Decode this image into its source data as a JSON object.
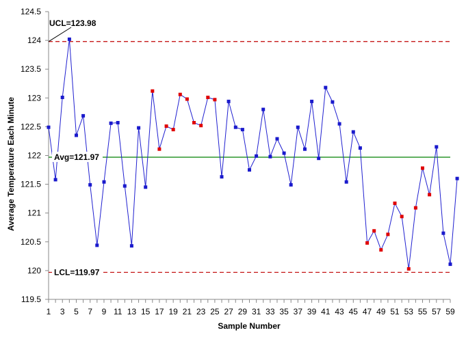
{
  "chart_data": {
    "type": "line",
    "title": "",
    "xlabel": "Sample Number",
    "ylabel": "Average Temperature Each Minute",
    "xlim": [
      1,
      59
    ],
    "ylim": [
      119.5,
      124.5
    ],
    "x_ticks": [
      "1",
      "3",
      "5",
      "7",
      "9",
      "11",
      "13",
      "15",
      "17",
      "19",
      "21",
      "23",
      "25",
      "27",
      "29",
      "31",
      "33",
      "35",
      "37",
      "39",
      "41",
      "43",
      "45",
      "47",
      "49",
      "51",
      "53",
      "55",
      "57",
      "59"
    ],
    "y_ticks": [
      "119.5",
      "120",
      "120.5",
      "121",
      "121.5",
      "122",
      "122.5",
      "123",
      "123.5",
      "124",
      "124.5"
    ],
    "grid": false,
    "legend": "none",
    "reference_lines": [
      {
        "name": "UCL",
        "label": "UCL=123.98",
        "value": 123.98,
        "style": "dashed",
        "color": "#c00000"
      },
      {
        "name": "Avg",
        "label": "Avg=121.97",
        "value": 121.97,
        "style": "solid",
        "color": "#008000"
      },
      {
        "name": "LCL",
        "label": "LCL=119.97",
        "value": 119.97,
        "style": "dashed",
        "color": "#c00000"
      }
    ],
    "series": [
      {
        "color": "#1f1fd0",
        "x": [
          1,
          2,
          3,
          4,
          5,
          6,
          7,
          8,
          9,
          10,
          11,
          12,
          13,
          14,
          15,
          16,
          17,
          18,
          19,
          20,
          21,
          22,
          23,
          24,
          25,
          26,
          27,
          28,
          29,
          30,
          31,
          32,
          33,
          34,
          35,
          36,
          37,
          38,
          39,
          40,
          41,
          42,
          43,
          44,
          45,
          46,
          47,
          48,
          49,
          50,
          51,
          52,
          53,
          54,
          55,
          56,
          57,
          58,
          59,
          60
        ],
        "values": [
          122.49,
          121.58,
          123.01,
          124.02,
          122.35,
          122.69,
          121.49,
          120.44,
          121.54,
          122.56,
          122.57,
          121.47,
          120.43,
          122.48,
          121.45,
          123.12,
          122.11,
          122.51,
          122.45,
          123.06,
          122.98,
          122.57,
          122.52,
          123.01,
          122.97,
          121.63,
          122.94,
          122.49,
          122.45,
          121.75,
          121.99,
          122.8,
          121.98,
          122.29,
          122.04,
          121.49,
          122.49,
          122.11,
          122.94,
          121.95,
          123.18,
          122.93,
          122.55,
          121.54,
          122.41,
          122.13,
          120.48,
          120.69,
          120.36,
          120.63,
          121.17,
          120.94,
          120.03,
          121.09,
          121.78,
          121.32,
          122.15,
          120.65,
          120.11,
          121.6
        ],
        "flagged": [
          false,
          false,
          false,
          false,
          false,
          false,
          false,
          false,
          false,
          false,
          false,
          false,
          false,
          false,
          false,
          true,
          true,
          true,
          true,
          true,
          true,
          true,
          true,
          true,
          true,
          false,
          false,
          false,
          false,
          false,
          false,
          false,
          false,
          false,
          false,
          false,
          false,
          false,
          false,
          false,
          false,
          false,
          false,
          false,
          false,
          false,
          true,
          true,
          true,
          true,
          true,
          true,
          true,
          true,
          true,
          true,
          false,
          false,
          false,
          false
        ]
      }
    ],
    "marker_colors": {
      "normal": "#1a1acc",
      "flagged": "#e00000"
    },
    "axis_color": "#888888"
  }
}
